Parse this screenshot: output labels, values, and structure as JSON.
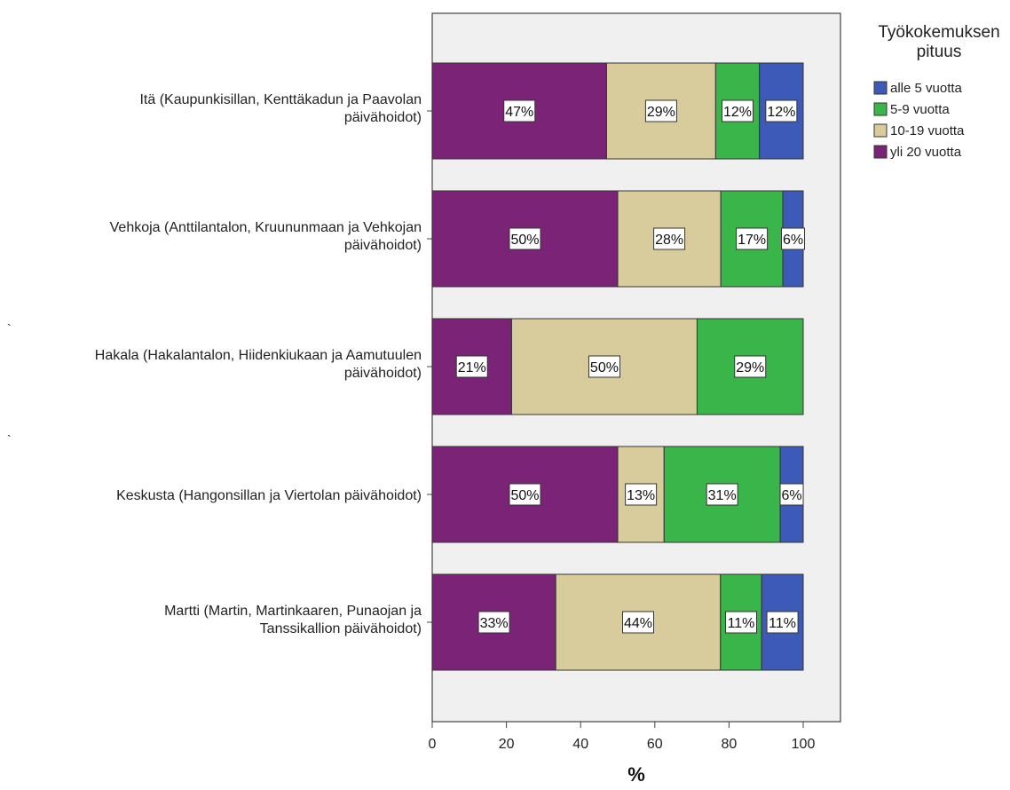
{
  "chart_data": {
    "type": "bar",
    "orientation": "horizontal",
    "stacked": true,
    "categories": [
      [
        "Itä (Kaupunkisillan, Kenttäkadun ja Paavolan",
        "päivähoidot)"
      ],
      [
        "Vehkoja (Anttilantalon, Kruununmaan ja Vehkojan",
        "päivähoidot)"
      ],
      [
        "Hakala (Hakalantalon, Hiidenkiukaan ja Aamutuulen",
        "päivähoidot)"
      ],
      [
        "Keskusta (Hangonsillan ja Viertolan päivähoidot)"
      ],
      [
        "Martti (Martin, Martinkaaren, Punaojan ja",
        "Tanssikallion päivähoidot)"
      ]
    ],
    "series": [
      {
        "name": "yli 20 vuotta",
        "color": "#7b2376",
        "values": [
          47,
          50,
          21.4,
          50,
          33.3
        ],
        "labels": [
          "47%",
          "50%",
          "21%",
          "50%",
          "33%"
        ]
      },
      {
        "name": "10-19 vuotta",
        "color": "#d9cc9c",
        "values": [
          29.4,
          27.8,
          50,
          12.5,
          44.4
        ],
        "labels": [
          "29%",
          "28%",
          "50%",
          "13%",
          "44%"
        ]
      },
      {
        "name": "5-9 vuotta",
        "color": "#39b54a",
        "values": [
          11.8,
          16.7,
          28.6,
          31.3,
          11.1
        ],
        "labels": [
          "12%",
          "17%",
          "29%",
          "31%",
          "11%"
        ]
      },
      {
        "name": "alle 5 vuotta",
        "color": "#3d5ab8",
        "values": [
          11.8,
          5.5,
          0,
          6.2,
          11.2
        ],
        "labels": [
          "12%",
          "6%",
          "",
          "6%",
          "11%"
        ]
      }
    ],
    "legend_order": [
      "alle 5 vuotta",
      "5-9 vuotta",
      "10-19 vuotta",
      "yli 20 vuotta"
    ],
    "legend_title": [
      "Työkokemuksen",
      "pituus"
    ],
    "legend_position": "top-right",
    "xlabel": "%",
    "ylabel": "",
    "xlim": [
      0,
      100
    ],
    "xticks": [
      0,
      20,
      40,
      60,
      80,
      100
    ],
    "background_color": "#f0f0f0",
    "grid": false
  }
}
